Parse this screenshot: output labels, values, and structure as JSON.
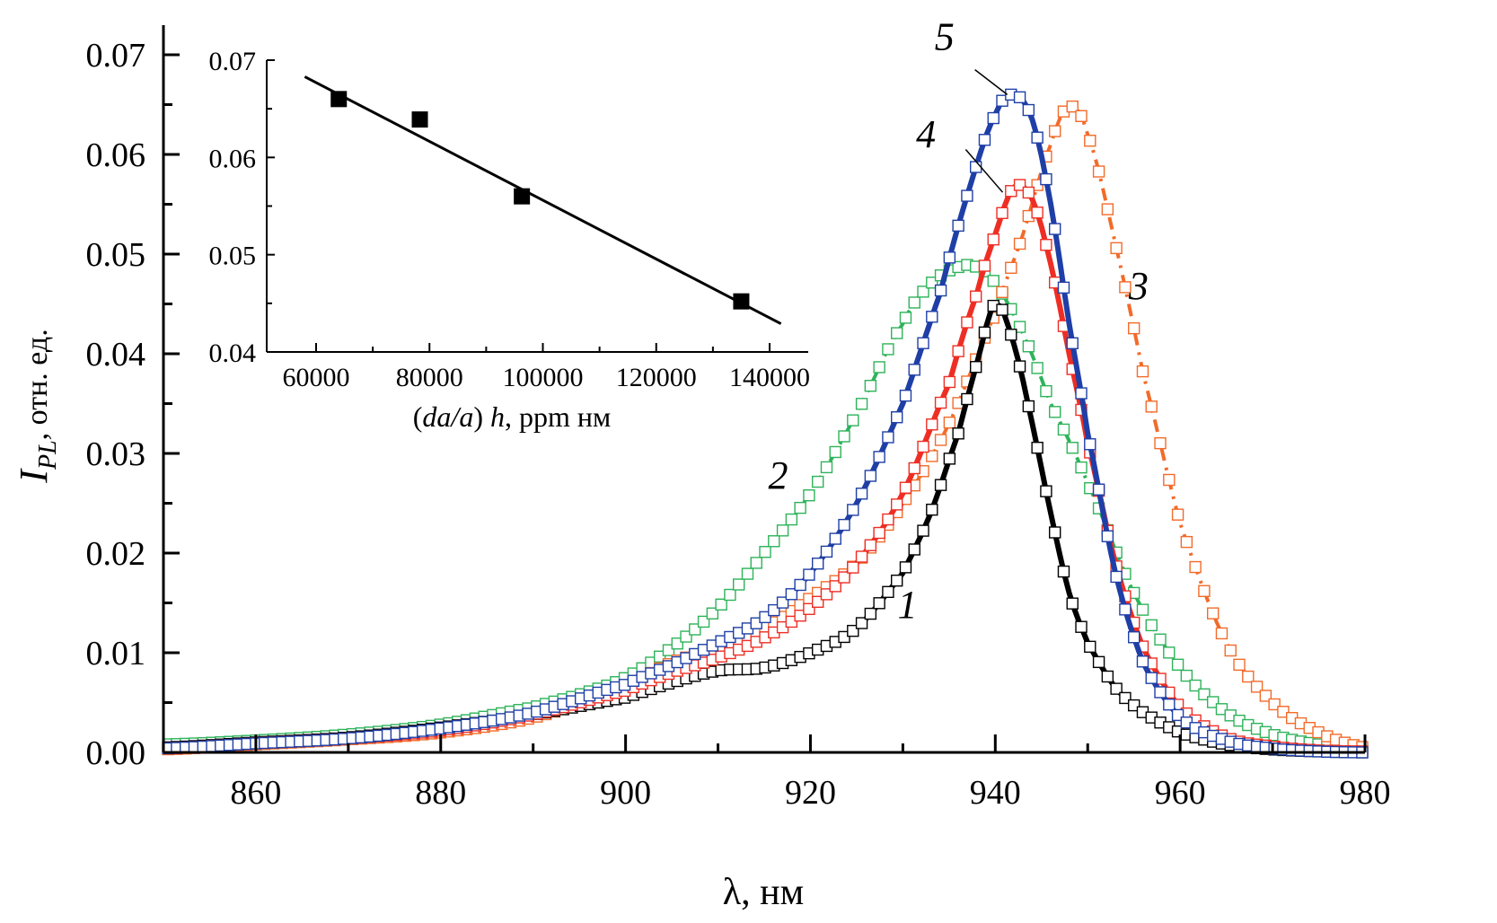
{
  "chart_data": [
    {
      "id": "main",
      "type": "line",
      "title": "",
      "xlabel": "λ, нм",
      "ylabel_main": "I",
      "ylabel_sub": "PL",
      "ylabel_rest": ", отн. ед.",
      "xlim": [
        850,
        980
      ],
      "ylim": [
        0.0,
        0.07
      ],
      "xticks": [
        860,
        880,
        900,
        920,
        940,
        960,
        980
      ],
      "xtick_labels": [
        "860",
        "880",
        "900",
        "920",
        "940",
        "960",
        "980"
      ],
      "yticks": [
        0.0,
        0.01,
        0.02,
        0.03,
        0.04,
        0.05,
        0.06,
        0.07
      ],
      "ytick_labels": [
        "0.00",
        "0.01",
        "0.02",
        "0.03",
        "0.04",
        "0.05",
        "0.06",
        "0.07"
      ],
      "grid": false,
      "marker": "open-square",
      "series": [
        {
          "name": "1",
          "label": "1",
          "color": "#000000",
          "line": "solid",
          "x": [
            850,
            860,
            870,
            880,
            890,
            900,
            905,
            910,
            915,
            920,
            925,
            930,
            933,
            936,
            938,
            940,
            942,
            944,
            946,
            948,
            950,
            953,
            956,
            960,
            965,
            970,
            975,
            980
          ],
          "y": [
            0.0005,
            0.001,
            0.0015,
            0.0025,
            0.0038,
            0.0055,
            0.007,
            0.0082,
            0.0085,
            0.01,
            0.0125,
            0.018,
            0.024,
            0.032,
            0.039,
            0.045,
            0.041,
            0.033,
            0.024,
            0.016,
            0.011,
            0.0065,
            0.004,
            0.002,
            0.0008,
            0.0003,
            0.0001,
            0.0
          ]
        },
        {
          "name": "2",
          "label": "2",
          "color": "#2eb35a",
          "line": "dash-dot",
          "x": [
            850,
            860,
            870,
            880,
            890,
            895,
            900,
            905,
            910,
            915,
            920,
            925,
            930,
            933,
            936,
            938,
            940,
            943,
            946,
            950,
            955,
            960,
            965,
            970,
            975,
            980
          ],
          "y": [
            0.0008,
            0.0012,
            0.0018,
            0.0028,
            0.0045,
            0.0058,
            0.0075,
            0.0105,
            0.0145,
            0.02,
            0.026,
            0.034,
            0.043,
            0.047,
            0.0487,
            0.0487,
            0.047,
            0.042,
            0.035,
            0.027,
            0.016,
            0.0085,
            0.004,
            0.0018,
            0.0008,
            0.0003
          ]
        },
        {
          "name": "3",
          "label": "3",
          "color": "#f26b2a",
          "line": "dash-dot",
          "x": [
            850,
            860,
            870,
            880,
            890,
            900,
            905,
            910,
            915,
            920,
            925,
            930,
            935,
            940,
            943,
            946,
            948,
            950,
            953,
            956,
            960,
            965,
            970,
            975,
            980
          ],
          "y": [
            0.0003,
            0.0008,
            0.0013,
            0.002,
            0.0035,
            0.0065,
            0.009,
            0.0105,
            0.0125,
            0.0155,
            0.019,
            0.025,
            0.033,
            0.044,
            0.052,
            0.061,
            0.0648,
            0.062,
            0.051,
            0.038,
            0.023,
            0.011,
            0.005,
            0.002,
            0.0005
          ]
        },
        {
          "name": "4",
          "label": "4",
          "color": "#ee2e24",
          "line": "solid",
          "x": [
            850,
            860,
            870,
            880,
            890,
            900,
            905,
            910,
            915,
            920,
            925,
            930,
            935,
            938,
            940,
            942,
            944,
            946,
            948,
            950,
            953,
            956,
            960,
            965,
            970,
            975,
            980
          ],
          "y": [
            0.0004,
            0.0009,
            0.0014,
            0.0022,
            0.0038,
            0.0062,
            0.008,
            0.0095,
            0.0115,
            0.0145,
            0.019,
            0.026,
            0.037,
            0.046,
            0.052,
            0.0567,
            0.0555,
            0.049,
            0.04,
            0.031,
            0.019,
            0.0105,
            0.0045,
            0.0015,
            0.0006,
            0.0002,
            0.0001
          ]
        },
        {
          "name": "5",
          "label": "5",
          "color": "#1f3fa6",
          "line": "solid",
          "x": [
            850,
            860,
            870,
            880,
            890,
            900,
            905,
            910,
            915,
            920,
            925,
            930,
            934,
            937,
            940,
            942,
            944,
            946,
            948,
            950,
            953,
            956,
            960,
            965,
            970,
            975,
            980
          ],
          "y": [
            0.0004,
            0.0009,
            0.0014,
            0.0024,
            0.004,
            0.0068,
            0.0088,
            0.011,
            0.0135,
            0.018,
            0.025,
            0.035,
            0.046,
            0.056,
            0.064,
            0.066,
            0.0635,
            0.055,
            0.043,
            0.032,
            0.018,
            0.009,
            0.0035,
            0.0012,
            0.0004,
            0.0001,
            0.0
          ]
        }
      ],
      "annotations": [
        {
          "text": "1",
          "x": 930.5,
          "y": 0.0135
        },
        {
          "text": "2",
          "x": 916.5,
          "y": 0.0265
        },
        {
          "text": "3",
          "x": 955.5,
          "y": 0.0455
        },
        {
          "text": "4",
          "x": 932.5,
          "y": 0.0607
        },
        {
          "text": "5",
          "x": 934.5,
          "y": 0.0705
        }
      ],
      "leaders": [
        {
          "from": [
            936.8,
            0.0605
          ],
          "to": [
            940.8,
            0.0562
          ]
        },
        {
          "from": [
            937.8,
            0.0685
          ],
          "to": [
            941.3,
            0.066
          ]
        }
      ]
    },
    {
      "id": "inset",
      "type": "scatter",
      "title": "",
      "xlabel_parts": [
        "(",
        "da/a",
        ") ",
        "h",
        ", ppm нм"
      ],
      "ylabel": "",
      "xlim": [
        50000,
        145000
      ],
      "ylim": [
        0.04,
        0.07
      ],
      "xticks": [
        60000,
        80000,
        100000,
        120000,
        140000
      ],
      "xtick_labels": [
        "60000",
        "80000",
        "100000",
        "120000",
        "140000"
      ],
      "xminor": [
        70000,
        90000,
        110000,
        130000
      ],
      "yticks": [
        0.04,
        0.05,
        0.06,
        0.07
      ],
      "ytick_labels": [
        "0.04",
        "0.05",
        "0.06",
        "0.07"
      ],
      "yminor": [
        0.045,
        0.055,
        0.065
      ],
      "grid": false,
      "points": {
        "x": [
          64000,
          78300,
          96300,
          135000
        ],
        "y": [
          0.066,
          0.0639,
          0.056,
          0.0452
        ],
        "color": "#000000",
        "marker": "filled-square"
      },
      "fit_line": {
        "x": [
          58000,
          142000
        ],
        "y": [
          0.0683,
          0.0429
        ],
        "color": "#000000"
      }
    }
  ]
}
